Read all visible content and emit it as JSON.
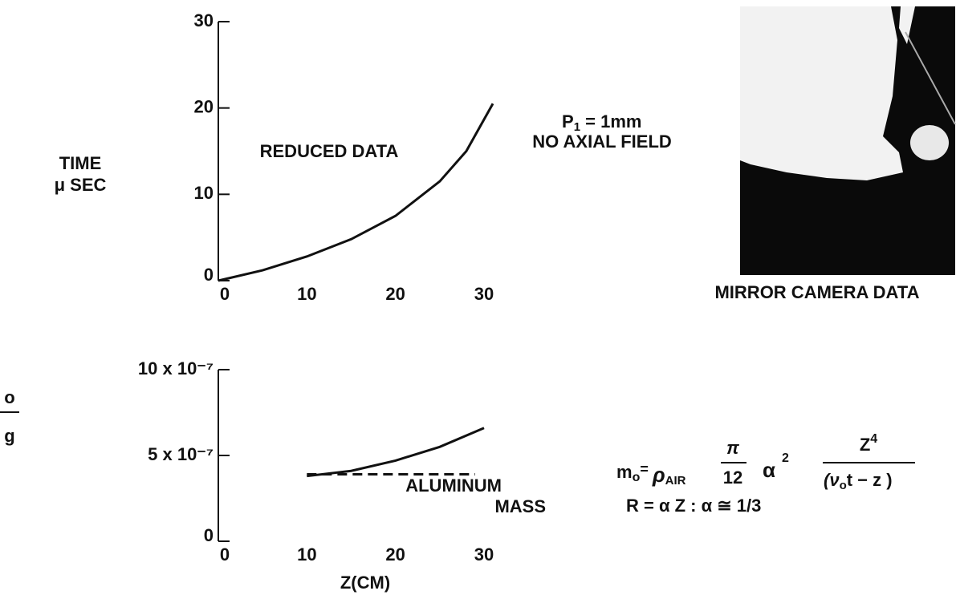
{
  "chart_data": [
    {
      "type": "line",
      "ylabel": [
        "TIME",
        "μ SEC"
      ],
      "annotation": [
        "REDUCED DATA"
      ],
      "xlim": [
        0,
        30
      ],
      "ylim": [
        0,
        30
      ],
      "xticks": [
        0,
        10,
        20,
        30
      ],
      "yticks": [
        0,
        10,
        20,
        30
      ],
      "x": [
        0,
        5,
        10,
        15,
        20,
        25,
        28,
        31
      ],
      "series": [
        {
          "color": "#111111",
          "dash": false,
          "values": [
            0,
            1.2,
            2.8,
            4.8,
            7.5,
            11.5,
            15,
            20.5
          ]
        }
      ]
    },
    {
      "type": "line",
      "ylabel": [
        "o",
        "g"
      ],
      "xlabel": "Z(CM)",
      "annotation": [
        "ALUMINUM",
        "MASS"
      ],
      "xlim": [
        0,
        30
      ],
      "ylim": [
        0,
        1e-06
      ],
      "xticks": [
        0,
        10,
        20,
        30
      ],
      "yticks": [
        0,
        {
          "value": 5e-07,
          "label": "5 x 10⁻⁷"
        },
        {
          "value": 1e-06,
          "label": "10 x 10⁻⁷"
        }
      ],
      "x": [
        10,
        15,
        20,
        25,
        30,
        29
      ],
      "series": [
        {
          "color": "#111111",
          "dash": false,
          "x": [
            10,
            15,
            20,
            25,
            30
          ],
          "values": [
            3.8e-07,
            4.1e-07,
            4.7e-07,
            5.5e-07,
            6.6e-07
          ]
        },
        {
          "color": "#111111",
          "dash": true,
          "x": [
            10,
            29
          ],
          "values": [
            3.9e-07,
            3.9e-07
          ]
        }
      ]
    }
  ],
  "conditions": {
    "p": "P",
    "p_sub": "1",
    "p_rest": " = 1mm",
    "field": "NO AXIAL FIELD"
  },
  "photo": {
    "caption": "MIRROR CAMERA DATA"
  },
  "equations": {
    "m": "m",
    "m_sub": "o",
    "eq": "= ",
    "rho": "ρ",
    "rho_sub": "AIR",
    "pi": "π",
    "twelve": "12",
    "a": "α",
    "a_sup": "2",
    "z": "Z",
    "z_sup": "4",
    "den": "(ν",
    "den_sub": "o",
    "den_rest": "t − z )",
    "line2": "R = α Z :  α ≅ 1/3"
  }
}
